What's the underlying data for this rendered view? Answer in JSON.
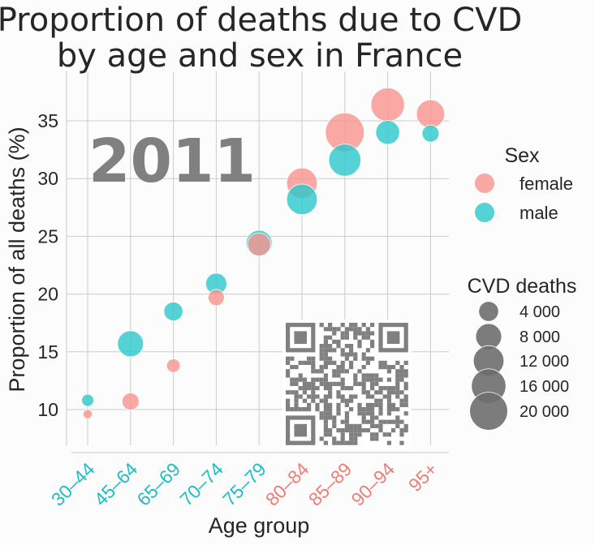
{
  "chart_data": {
    "type": "scatter",
    "title_line1": "Proportion of deaths due to CVD",
    "title_line2": "by age and sex in France",
    "xlabel": "Age group",
    "ylabel": "Proportion of all deaths (%)",
    "year_label": "2011",
    "categories": [
      "30–44",
      "45–64",
      "65–69",
      "70–74",
      "75–79",
      "80–84",
      "85–89",
      "90–94",
      "95+"
    ],
    "category_colors": [
      "#1ebcc6",
      "#1ebcc6",
      "#1ebcc6",
      "#1ebcc6",
      "#1ebcc6",
      "#ef7d76",
      "#ef7d76",
      "#ef7d76",
      "#ef7d76"
    ],
    "yticks": [
      10,
      15,
      20,
      25,
      30,
      35
    ],
    "ylim": [
      6.5,
      39.5
    ],
    "grid": true,
    "series": [
      {
        "name": "female",
        "color": "#f8958f",
        "points": [
          {
            "x": "30–44",
            "y": 9.6,
            "deaths": 300
          },
          {
            "x": "45–64",
            "y": 10.7,
            "deaths": 2600
          },
          {
            "x": "65–69",
            "y": 13.8,
            "deaths": 1300
          },
          {
            "x": "70–74",
            "y": 19.7,
            "deaths": 2300
          },
          {
            "x": "75–79",
            "y": 24.3,
            "deaths": 6000
          },
          {
            "x": "80–84",
            "y": 29.6,
            "deaths": 12000
          },
          {
            "x": "85–89",
            "y": 34.0,
            "deaths": 21000
          },
          {
            "x": "90–94",
            "y": 36.4,
            "deaths": 15000
          },
          {
            "x": "95+",
            "y": 35.6,
            "deaths": 9800
          }
        ]
      },
      {
        "name": "male",
        "color": "#2fc8cc",
        "points": [
          {
            "x": "30–44",
            "y": 10.8,
            "deaths": 900
          },
          {
            "x": "45–64",
            "y": 15.7,
            "deaths": 8000
          },
          {
            "x": "65–69",
            "y": 18.5,
            "deaths": 3500
          },
          {
            "x": "70–74",
            "y": 20.9,
            "deaths": 4700
          },
          {
            "x": "75–79",
            "y": 24.4,
            "deaths": 8000
          },
          {
            "x": "80–84",
            "y": 28.2,
            "deaths": 12000
          },
          {
            "x": "85–89",
            "y": 31.6,
            "deaths": 13500
          },
          {
            "x": "90–94",
            "y": 34.0,
            "deaths": 6500
          },
          {
            "x": "95+",
            "y": 33.9,
            "deaths": 2600
          }
        ]
      }
    ],
    "legend": {
      "sex_title": "Sex",
      "sex_entries": [
        {
          "label": "female",
          "color": "#f8958f"
        },
        {
          "label": "male",
          "color": "#2fc8cc"
        }
      ],
      "size_title": "CVD deaths",
      "size_entries": [
        {
          "label": "4 000",
          "value": 4000
        },
        {
          "label": "8 000",
          "value": 8000
        },
        {
          "label": "12 000",
          "value": 12000
        },
        {
          "label": "16 000",
          "value": 16000
        },
        {
          "label": "20 000",
          "value": 20000
        }
      ],
      "size_color": "#6e6e6e"
    }
  },
  "qr_color": "#808080"
}
